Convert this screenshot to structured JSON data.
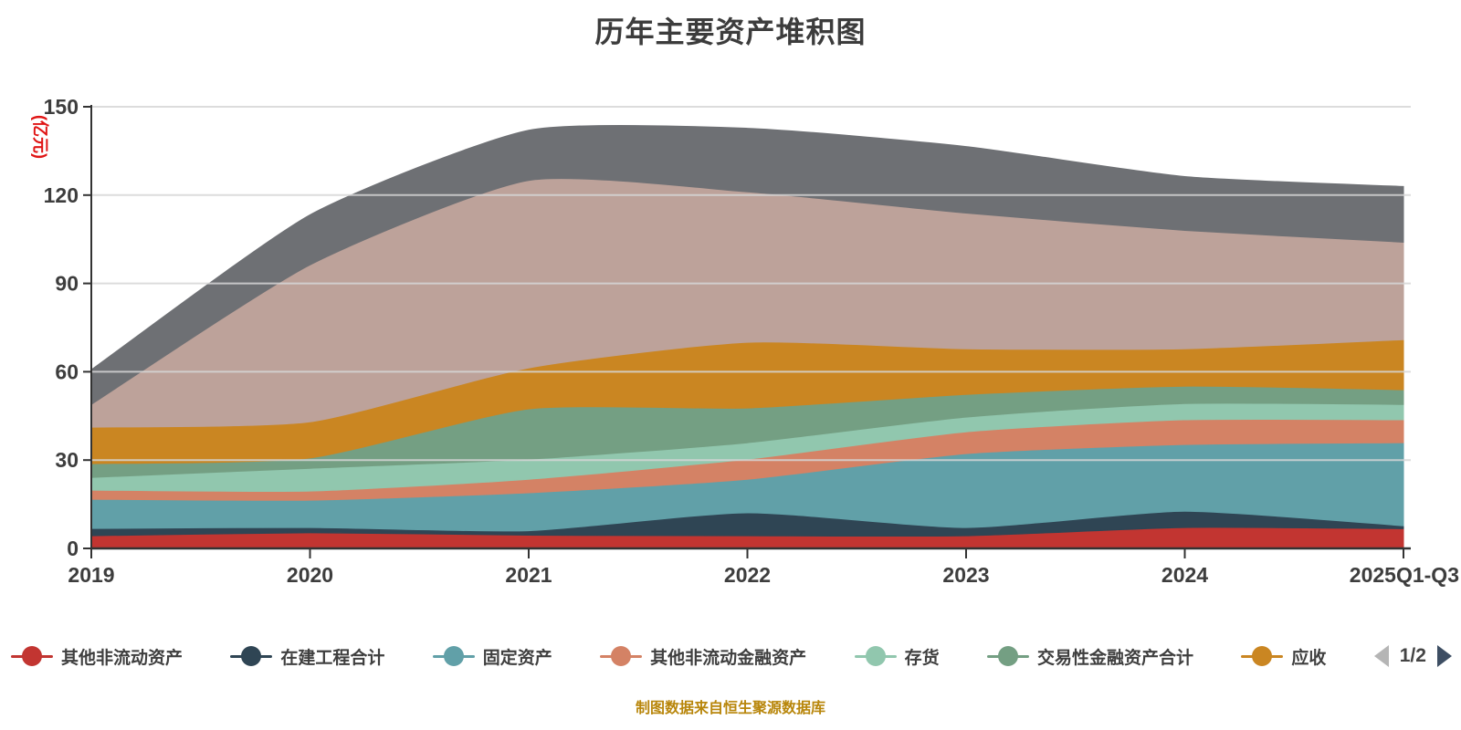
{
  "title": "历年主要资产堆积图",
  "y_axis": {
    "unit_label": "(亿元)",
    "unit_color": "#e01515",
    "ticks": [
      0,
      30,
      60,
      90,
      120,
      150
    ]
  },
  "x_axis": {
    "categories": [
      "2019",
      "2020",
      "2021",
      "2022",
      "2023",
      "2024",
      "2025Q1-Q3"
    ]
  },
  "legend": {
    "page": "1/2",
    "items": [
      {
        "label": "其他非流动资产",
        "color": "#c23531"
      },
      {
        "label": "在建工程合计",
        "color": "#2f4554"
      },
      {
        "label": "固定资产",
        "color": "#61a0a8"
      },
      {
        "label": "其他非流动金融资产",
        "color": "#d48265"
      },
      {
        "label": "存货",
        "color": "#91c7ae"
      },
      {
        "label": "交易性金融资产合计",
        "color": "#749f83"
      },
      {
        "label": "应收",
        "color": "#ca8622"
      }
    ]
  },
  "footer": {
    "source_text": "制图数据来自恒生聚源数据库",
    "source_color": "#b8860b"
  },
  "chart_data": {
    "type": "area",
    "stacked": true,
    "smooth": true,
    "title": "历年主要资产堆积图",
    "ylabel": "(亿元)",
    "ylim": [
      0,
      150
    ],
    "grid_values": [
      30,
      60,
      90,
      120,
      150
    ],
    "categories": [
      "2019",
      "2020",
      "2021",
      "2022",
      "2023",
      "2024",
      "2025Q1-Q3"
    ],
    "series": [
      {
        "name": "其他非流动资产",
        "color": "#c23531",
        "values": [
          4.3,
          5.3,
          4.5,
          4.3,
          4.3,
          7.1,
          6.7
        ]
      },
      {
        "name": "在建工程合计",
        "color": "#2f4554",
        "values": [
          2.5,
          1.8,
          1.5,
          7.8,
          2.8,
          5.5,
          1.0
        ]
      },
      {
        "name": "固定资产",
        "color": "#61a0a8",
        "values": [
          9.9,
          9.3,
          12.9,
          11.4,
          25.1,
          22.7,
          28.2
        ]
      },
      {
        "name": "其他非流动金融资产",
        "color": "#d48265",
        "values": [
          3.1,
          3.1,
          4.6,
          6.8,
          7.4,
          8.4,
          7.8
        ]
      },
      {
        "name": "存货",
        "color": "#91c7ae",
        "values": [
          4.3,
          7.7,
          6.8,
          5.6,
          5.0,
          5.5,
          5.2
        ]
      },
      {
        "name": "交易性金融资产合计",
        "color": "#749f83",
        "values": [
          4.7,
          3.5,
          17.1,
          11.8,
          7.7,
          5.9,
          5.0
        ]
      },
      {
        "name": "应收",
        "color": "#ca8622",
        "values": [
          12.4,
          12.3,
          13.9,
          22.3,
          15.5,
          12.7,
          17.0
        ]
      },
      {
        "name": "",
        "color": "#bda29a",
        "values": [
          7.7,
          53.3,
          63.7,
          51.1,
          46.1,
          40.2,
          33.1
        ]
      },
      {
        "name": "",
        "color": "#6e7074",
        "values": [
          11.8,
          17.0,
          17.0,
          21.6,
          22.6,
          18.3,
          18.9
        ]
      }
    ]
  }
}
